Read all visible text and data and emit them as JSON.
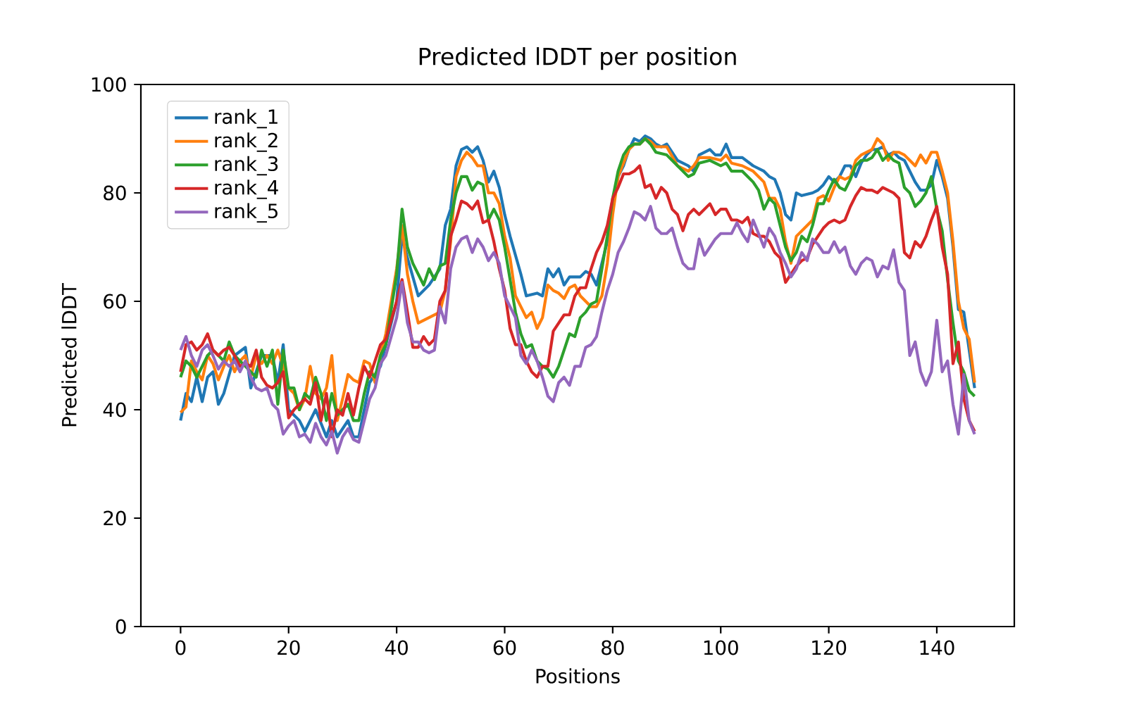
{
  "chart_data": {
    "type": "line",
    "title": "Predicted lDDT per position",
    "xlabel": "Positions",
    "ylabel": "Predicted lDDT",
    "xlim": [
      -7.35,
      154.35
    ],
    "ylim": [
      0,
      100
    ],
    "xticks": [
      0,
      20,
      40,
      60,
      80,
      100,
      120,
      140
    ],
    "yticks": [
      0,
      20,
      40,
      60,
      80,
      100
    ],
    "legend": "top left",
    "grid": false,
    "series": [
      {
        "name": "rank_1",
        "color": "#1f77b4",
        "x": [
          0,
          1,
          2,
          3,
          4,
          5,
          6,
          7,
          8,
          10,
          12,
          13,
          15,
          17,
          18,
          19,
          20,
          22,
          23,
          25,
          27,
          28,
          29,
          31,
          32,
          33,
          35,
          37,
          38,
          40,
          41,
          42,
          44,
          46,
          48,
          49,
          50,
          51,
          52,
          53,
          54,
          55,
          56,
          57,
          58,
          59,
          60,
          61,
          63,
          64,
          66,
          67,
          68,
          69,
          70,
          71,
          72,
          74,
          75,
          76,
          77,
          78,
          79,
          80,
          81,
          82,
          83,
          84,
          85,
          86,
          87,
          88,
          89,
          90,
          92,
          94,
          95,
          96,
          98,
          99,
          100,
          101,
          102,
          104,
          106,
          108,
          109,
          110,
          111,
          112,
          113,
          114,
          115,
          117,
          118,
          119,
          120,
          121,
          122,
          123,
          124,
          125,
          126,
          127,
          128,
          129,
          130,
          131,
          132,
          133,
          134,
          135,
          136,
          137,
          138,
          139,
          140,
          141,
          142,
          143,
          144,
          145,
          146,
          147
        ],
        "values": [
          38,
          43,
          41.5,
          46,
          41.5,
          46,
          47,
          41,
          43,
          50,
          51.5,
          44,
          50,
          50,
          45,
          52,
          40,
          38,
          36,
          40,
          35,
          38,
          35,
          38,
          35,
          35,
          45,
          48,
          52,
          60,
          72,
          68,
          61,
          63,
          66,
          74,
          77,
          85,
          88,
          88.5,
          87.5,
          88.5,
          86,
          82,
          84,
          81,
          76,
          72,
          65,
          61,
          61.5,
          61,
          66,
          64.5,
          66,
          63,
          64.5,
          64.5,
          65.5,
          65,
          63,
          67,
          71,
          77,
          83,
          85,
          88,
          90,
          89.5,
          90.5,
          90,
          89,
          88.5,
          89,
          86,
          85,
          84,
          87,
          88,
          87,
          87,
          89,
          86.5,
          86.5,
          85,
          84,
          83,
          82.5,
          80,
          76,
          75,
          80,
          79.5,
          80,
          80.5,
          81.5,
          83,
          82,
          83,
          85,
          85,
          83,
          85.5,
          87,
          88,
          88,
          88.5,
          87,
          87.5,
          86.5,
          86,
          84,
          82,
          80.5,
          80.5,
          81.5,
          86,
          83,
          79,
          70,
          58.5,
          58,
          51,
          44
        ]
      },
      {
        "name": "rank_2",
        "color": "#ff7f0e",
        "x": [
          0,
          1,
          2,
          3,
          4,
          5,
          6,
          7,
          8,
          9,
          10,
          11,
          12,
          13,
          14,
          15,
          16,
          17,
          18,
          19,
          20,
          21,
          22,
          23,
          24,
          25,
          26,
          27,
          28,
          29,
          30,
          31,
          32,
          33,
          34,
          35,
          36,
          37,
          38,
          40,
          41,
          42,
          43,
          44,
          46,
          48,
          49,
          50,
          51,
          52,
          53,
          54,
          55,
          56,
          57,
          58,
          59,
          60,
          61,
          62,
          63,
          64,
          65,
          66,
          67,
          68,
          69,
          70,
          71,
          72,
          73,
          74,
          75,
          76,
          77,
          78,
          79,
          80,
          81,
          82,
          83,
          84,
          85,
          86,
          87,
          88,
          90,
          92,
          94,
          95,
          96,
          98,
          100,
          101,
          102,
          104,
          106,
          108,
          109,
          110,
          111,
          112,
          113,
          114,
          116,
          117,
          118,
          119,
          120,
          121,
          122,
          123,
          124,
          125,
          126,
          127,
          128,
          129,
          130,
          131,
          132,
          133,
          134,
          135,
          136,
          137,
          138,
          139,
          140,
          141,
          142,
          143,
          144,
          145,
          146,
          147
        ],
        "values": [
          39.5,
          40.5,
          49,
          47,
          45.5,
          50,
          48.5,
          45.5,
          48,
          50,
          47,
          49,
          50,
          46,
          50,
          48.5,
          50,
          48.5,
          51,
          48,
          44,
          43,
          40,
          42,
          48,
          43,
          42,
          44,
          50,
          38,
          42,
          46.5,
          45.5,
          45,
          49,
          48.5,
          45,
          50,
          54,
          66,
          74,
          65,
          60,
          56,
          57,
          58,
          62,
          71,
          83,
          86,
          87.5,
          86.5,
          85,
          85,
          80,
          80,
          78,
          72,
          68,
          61,
          59,
          57,
          58,
          55,
          57,
          63,
          62,
          61.5,
          60.5,
          62.5,
          63,
          61,
          60,
          59,
          59,
          61,
          67,
          76,
          83,
          85.5,
          88,
          89,
          89,
          90,
          89.5,
          88.5,
          88.5,
          85,
          84,
          85,
          86.5,
          86.5,
          86,
          87,
          85.5,
          85,
          84,
          82,
          79,
          79,
          77,
          71,
          67,
          72,
          74,
          75,
          79,
          79.5,
          78.5,
          81,
          83,
          82.5,
          83,
          86,
          87,
          87.5,
          88,
          90,
          89,
          86,
          87.5,
          87.5,
          87,
          86,
          85,
          87,
          85.5,
          87.5,
          87.5,
          84,
          80,
          71,
          60,
          55,
          53,
          45
        ]
      },
      {
        "name": "rank_3",
        "color": "#2ca02c",
        "x": [
          0,
          1,
          2,
          3,
          4,
          5,
          6,
          7,
          8,
          9,
          10,
          11,
          12,
          13,
          14,
          15,
          16,
          17,
          18,
          19,
          20,
          21,
          22,
          23,
          24,
          25,
          26,
          27,
          28,
          29,
          30,
          31,
          32,
          33,
          34,
          35,
          36,
          37,
          38,
          40,
          41,
          42,
          43,
          44,
          45,
          46,
          47,
          48,
          49,
          50,
          51,
          52,
          53,
          54,
          55,
          56,
          57,
          58,
          59,
          60,
          61,
          62,
          63,
          64,
          65,
          66,
          67,
          68,
          69,
          70,
          71,
          72,
          73,
          74,
          75,
          76,
          77,
          78,
          79,
          80,
          81,
          82,
          83,
          84,
          85,
          86,
          87,
          88,
          90,
          92,
          94,
          95,
          96,
          98,
          100,
          101,
          102,
          104,
          106,
          107,
          108,
          109,
          110,
          111,
          112,
          113,
          114,
          115,
          116,
          117,
          118,
          119,
          120,
          121,
          122,
          123,
          124,
          125,
          126,
          127,
          128,
          129,
          130,
          131,
          132,
          133,
          134,
          135,
          136,
          137,
          138,
          139,
          140,
          141,
          142,
          143,
          144,
          145,
          146,
          147
        ],
        "values": [
          46,
          49,
          48,
          46,
          48,
          50,
          51,
          50,
          49,
          52.5,
          50,
          49,
          48,
          47,
          46,
          51,
          48,
          51,
          41,
          51,
          44,
          44,
          40,
          43,
          42,
          46,
          43,
          38,
          43,
          39,
          40,
          41,
          38,
          38,
          43,
          47,
          46,
          50,
          52,
          65,
          77,
          70,
          67,
          65,
          63,
          66,
          64,
          66.5,
          67,
          75,
          80,
          83,
          83,
          80.5,
          82,
          81.5,
          75,
          77,
          75,
          70,
          64,
          58,
          54,
          51.5,
          52,
          49,
          48,
          47.5,
          46,
          48,
          51,
          54,
          53.5,
          57,
          58,
          59.5,
          60,
          66,
          72,
          79,
          84,
          87,
          88.5,
          89,
          89,
          90,
          89,
          87.5,
          87,
          85,
          83,
          83.5,
          85.5,
          86,
          85,
          85.5,
          84,
          84,
          82,
          80.5,
          77,
          79,
          78,
          74,
          70,
          67.5,
          69,
          72,
          71,
          74,
          78,
          78,
          80.5,
          82.5,
          81,
          80.5,
          82.5,
          85,
          86,
          86,
          86.5,
          88,
          86,
          87,
          86,
          85.5,
          81,
          80,
          77.5,
          78.5,
          80,
          83,
          77,
          73,
          64,
          56,
          49,
          47,
          43.5,
          42.5
        ]
      },
      {
        "name": "rank_4",
        "color": "#d62728",
        "x": [
          0,
          1,
          2,
          3,
          4,
          5,
          6,
          7,
          8,
          9,
          10,
          11,
          12,
          13,
          14,
          15,
          16,
          17,
          18,
          19,
          20,
          21,
          22,
          23,
          24,
          25,
          26,
          27,
          28,
          29,
          30,
          31,
          32,
          33,
          34,
          35,
          37,
          38,
          40,
          41,
          42,
          43,
          44,
          45,
          46,
          47,
          48,
          49,
          50,
          51,
          52,
          53,
          54,
          55,
          56,
          57,
          58,
          59,
          60,
          61,
          62,
          63,
          64,
          65,
          66,
          67,
          68,
          69,
          70,
          71,
          72,
          73,
          74,
          75,
          76,
          77,
          78,
          79,
          80,
          81,
          82,
          83,
          84,
          85,
          86,
          87,
          88,
          89,
          90,
          91,
          92,
          93,
          94,
          95,
          96,
          97,
          98,
          99,
          100,
          101,
          102,
          103,
          104,
          105,
          106,
          107,
          108,
          109,
          110,
          111,
          112,
          113,
          114,
          115,
          116,
          117,
          118,
          119,
          120,
          121,
          122,
          123,
          124,
          125,
          126,
          127,
          128,
          129,
          130,
          131,
          132,
          133,
          134,
          135,
          136,
          137,
          138,
          139,
          140,
          141,
          142,
          143,
          144,
          145,
          146,
          147
        ],
        "values": [
          47,
          52,
          52.5,
          51,
          52,
          54,
          51,
          50,
          51,
          51.5,
          50,
          48,
          48.5,
          48,
          51,
          46,
          44.5,
          44,
          45,
          47,
          38.5,
          40,
          41,
          42,
          41,
          45,
          38,
          43,
          35,
          40,
          39,
          43,
          39,
          44,
          48,
          46,
          52,
          53,
          60,
          64,
          58,
          51.5,
          51.5,
          53.5,
          52,
          53,
          60,
          62,
          72,
          75,
          78.5,
          78,
          77,
          78.5,
          74.5,
          75,
          71,
          66,
          62,
          55,
          52,
          52,
          49,
          47,
          46,
          48,
          48,
          54.5,
          56,
          57.5,
          57.5,
          61,
          62.5,
          62.5,
          66,
          69,
          71,
          74,
          79,
          81,
          83.5,
          83.5,
          84,
          85,
          81,
          81.5,
          79,
          81,
          80,
          77,
          76,
          73,
          76,
          77,
          76,
          77,
          78,
          76,
          77,
          77,
          75,
          75,
          74.5,
          75.5,
          72.5,
          72,
          72,
          71,
          69,
          68,
          63.5,
          65,
          66.5,
          67.5,
          68,
          70.5,
          72,
          73.5,
          74.5,
          75,
          74.5,
          75,
          77.5,
          79.5,
          81,
          80.5,
          80.5,
          80,
          81,
          80.5,
          80,
          79,
          69,
          68,
          71,
          70,
          72,
          75,
          77.5,
          70,
          65,
          48.5,
          52.5,
          42,
          38,
          36
        ]
      },
      {
        "name": "rank_5",
        "color": "#9467bd",
        "x": [
          0,
          1,
          2,
          3,
          4,
          5,
          6,
          7,
          8,
          9,
          10,
          11,
          12,
          13,
          14,
          15,
          16,
          17,
          18,
          19,
          20,
          21,
          22,
          23,
          24,
          25,
          26,
          27,
          28,
          29,
          30,
          31,
          32,
          33,
          34,
          35,
          36,
          37,
          38,
          40,
          41,
          42,
          43,
          44,
          45,
          46,
          47,
          48,
          49,
          50,
          51,
          52,
          53,
          54,
          55,
          56,
          57,
          58,
          59,
          60,
          61,
          62,
          63,
          64,
          65,
          66,
          67,
          68,
          69,
          70,
          71,
          72,
          73,
          74,
          75,
          76,
          77,
          78,
          79,
          80,
          81,
          82,
          83,
          84,
          85,
          86,
          87,
          88,
          89,
          90,
          91,
          92,
          93,
          94,
          95,
          96,
          97,
          98,
          99,
          100,
          101,
          102,
          103,
          104,
          105,
          106,
          107,
          108,
          109,
          110,
          111,
          112,
          113,
          114,
          115,
          116,
          117,
          118,
          119,
          120,
          121,
          122,
          123,
          124,
          125,
          126,
          127,
          128,
          129,
          130,
          131,
          132,
          133,
          134,
          135,
          136,
          137,
          138,
          139,
          140,
          141,
          142,
          143,
          144,
          145,
          146,
          147
        ],
        "values": [
          51,
          53.5,
          50,
          48,
          51,
          52,
          50,
          47.5,
          49,
          48,
          49,
          47,
          49,
          46,
          44,
          43.5,
          44,
          41,
          40,
          35.5,
          37,
          38,
          35,
          35.5,
          34,
          37.5,
          35,
          33.5,
          36,
          32,
          35,
          36.5,
          34.5,
          34,
          38,
          42,
          44,
          48.5,
          50,
          57,
          63.5,
          56,
          52.5,
          52.5,
          51,
          50.5,
          51,
          59,
          56,
          66,
          70,
          71.5,
          72,
          69,
          71.5,
          70,
          67.5,
          69,
          67,
          61,
          59,
          57,
          50,
          48.5,
          51,
          49,
          46,
          42.5,
          41.5,
          45,
          46,
          44.5,
          48,
          48,
          51.5,
          52,
          53.5,
          58,
          62,
          65,
          69,
          71,
          73.5,
          76.5,
          76,
          75,
          77.5,
          73.5,
          72.5,
          72.5,
          73.5,
          70,
          67,
          66,
          66,
          71.5,
          68.5,
          70,
          71.5,
          72.5,
          72.5,
          72.5,
          74.5,
          72.5,
          71,
          75,
          72.5,
          70,
          73.5,
          72,
          69,
          67,
          64.5,
          66,
          69,
          67.5,
          71.5,
          70.5,
          69,
          69,
          71,
          69,
          70,
          66.5,
          65,
          67,
          68,
          67.5,
          64.5,
          66.5,
          66,
          69.5,
          63.5,
          62,
          50,
          52.5,
          47,
          44.5,
          47,
          56.5,
          47,
          49,
          41,
          35.5,
          46.5,
          38,
          35.5
        ]
      }
    ]
  }
}
